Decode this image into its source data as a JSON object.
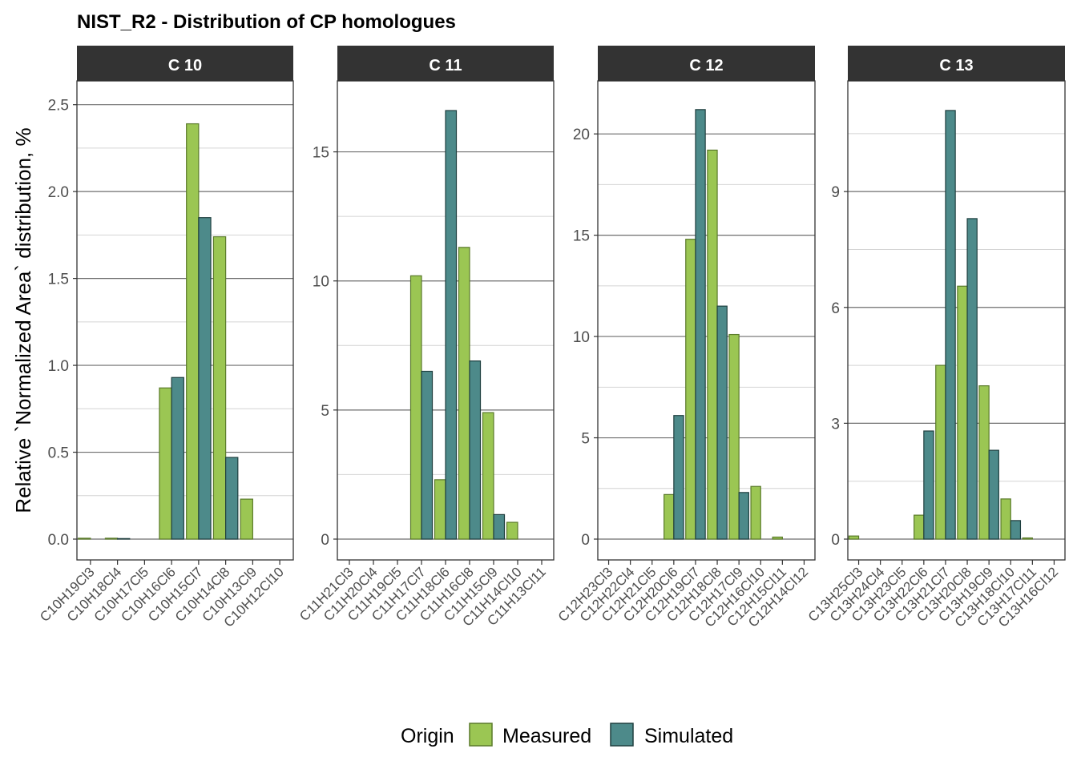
{
  "title": "NIST_R2  - Distribution of CP homologues",
  "ylabel": "Relative `Normalized Area` distribution, %",
  "legend": {
    "title": "Origin",
    "entries": [
      {
        "name": "Measured",
        "color": "#9bc653",
        "stroke": "#5a7a2a"
      },
      {
        "name": "Simulated",
        "color": "#4d8a8a",
        "stroke": "#1f3f3f"
      }
    ],
    "placement": "bottom"
  },
  "colors": {
    "strip_bg": "#333333",
    "major_grid": "#6e6e6e",
    "minor_grid": "#d4d4d4",
    "panel_border": "#333333"
  },
  "chart_data": [
    {
      "type": "bar",
      "facet": "C 10",
      "categories": [
        "C10H19Cl3",
        "C10H18Cl4",
        "C10H17Cl5",
        "C10H16Cl6",
        "C10H15Cl7",
        "C10H14Cl8",
        "C10H13Cl9",
        "C10H12Cl10"
      ],
      "series": [
        {
          "name": "Measured",
          "values": [
            0.005,
            0.005,
            0,
            0.87,
            2.39,
            1.74,
            0.23,
            0
          ]
        },
        {
          "name": "Simulated",
          "values": [
            0,
            0.003,
            0,
            0.93,
            1.85,
            0.47,
            0,
            0
          ]
        }
      ],
      "ylim": [
        0,
        2.6
      ],
      "yticks": [
        0.0,
        0.5,
        1.0,
        1.5,
        2.0,
        2.5
      ],
      "ytick_labels": [
        "0.0",
        "0.5",
        "1.0",
        "1.5",
        "2.0",
        "2.5"
      ]
    },
    {
      "type": "bar",
      "facet": "C 11",
      "categories": [
        "C11H21Cl3",
        "C11H20Cl4",
        "C11H19Cl5",
        "C11H17Cl7",
        "C11H18Cl6",
        "C11H16Cl8",
        "C11H15Cl9",
        "C11H14Cl10",
        "C11H13Cl11"
      ],
      "series": [
        {
          "name": "Measured",
          "values": [
            0,
            0,
            0,
            10.2,
            2.3,
            11.3,
            4.9,
            0.65,
            0
          ]
        },
        {
          "name": "Simulated",
          "values": [
            0,
            0,
            0,
            6.5,
            16.6,
            6.9,
            0.95,
            0,
            0
          ]
        }
      ],
      "ylim": [
        0,
        17.5
      ],
      "yticks": [
        0,
        5,
        10,
        15
      ],
      "ytick_labels": [
        "0",
        "5",
        "10",
        "15"
      ]
    },
    {
      "type": "bar",
      "facet": "C 12",
      "categories": [
        "C12H23Cl3",
        "C12H22Cl4",
        "C12H21Cl5",
        "C12H20Cl6",
        "C12H19Cl7",
        "C12H18Cl8",
        "C12H17Cl9",
        "C12H16Cl10",
        "C12H15Cl11",
        "C12H14Cl12"
      ],
      "series": [
        {
          "name": "Measured",
          "values": [
            0,
            0,
            0,
            2.2,
            14.8,
            19.2,
            10.1,
            2.6,
            0.1,
            0
          ]
        },
        {
          "name": "Simulated",
          "values": [
            0,
            0,
            0,
            6.1,
            21.2,
            11.5,
            2.3,
            0,
            0,
            0
          ]
        }
      ],
      "ylim": [
        0,
        22.3
      ],
      "yticks": [
        0,
        5,
        10,
        15,
        20
      ],
      "ytick_labels": [
        "0",
        "5",
        "10",
        "15",
        "20"
      ]
    },
    {
      "type": "bar",
      "facet": "C 13",
      "categories": [
        "C13H25Cl3",
        "C13H24Cl4",
        "C13H23Cl5",
        "C13H22Cl6",
        "C13H21Cl7",
        "C13H20Cl8",
        "C13H19Cl9",
        "C13H18Cl10",
        "C13H17Cl11",
        "C13H16Cl12"
      ],
      "series": [
        {
          "name": "Measured",
          "values": [
            0.08,
            0,
            0,
            0.62,
            4.5,
            6.55,
            3.97,
            1.04,
            0.03,
            0
          ]
        },
        {
          "name": "Simulated",
          "values": [
            0,
            0,
            0,
            2.8,
            11.1,
            8.3,
            2.3,
            0.48,
            0,
            0
          ]
        }
      ],
      "ylim": [
        0,
        11.7
      ],
      "yticks": [
        0,
        3,
        6,
        9
      ],
      "ytick_labels": [
        "0",
        "3",
        "6",
        "9"
      ]
    }
  ]
}
